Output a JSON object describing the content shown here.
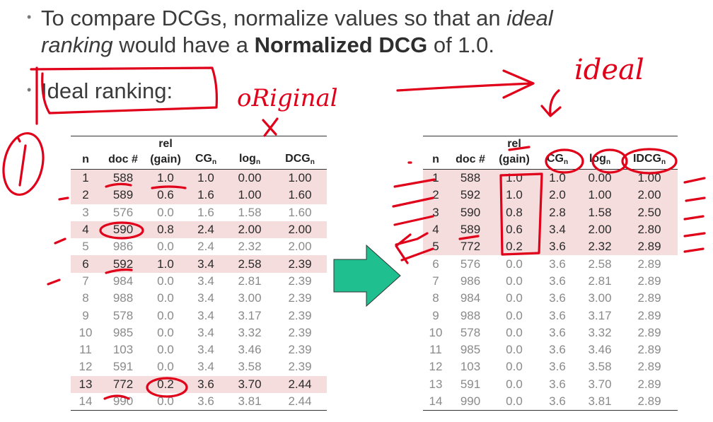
{
  "bullets": {
    "b1_pre": "To compare DCGs, normalize values so that an ",
    "b1_ital": "ideal",
    "b1_ital2": "ranking",
    "b1_mid": " would have a ",
    "b1_bold": "Normalized DCG",
    "b1_post": " of 1.0.",
    "b2": "Ideal ranking:"
  },
  "handwriting": {
    "original": "oRiginal",
    "ideal": "ideal",
    "circled": "(i)"
  },
  "colors": {
    "ink": "#e0001a",
    "arrow": "#1fbf8f",
    "highlight": "#f6dddd"
  },
  "left_table": {
    "headers": {
      "n": "n",
      "doc": "doc #",
      "rel_top": "rel",
      "rel_bot": "(gain)",
      "cg": "CG",
      "log": "log",
      "dcg": "DCG",
      "sub": "n"
    },
    "rows": [
      {
        "n": "1",
        "doc": "588",
        "rel": "1.0",
        "cg": "1.0",
        "log": "0.00",
        "dcg": "1.00",
        "hl": true
      },
      {
        "n": "2",
        "doc": "589",
        "rel": "0.6",
        "cg": "1.6",
        "log": "1.00",
        "dcg": "1.60",
        "hl": true
      },
      {
        "n": "3",
        "doc": "576",
        "rel": "0.0",
        "cg": "1.6",
        "log": "1.58",
        "dcg": "1.60",
        "hl": false
      },
      {
        "n": "4",
        "doc": "590",
        "rel": "0.8",
        "cg": "2.4",
        "log": "2.00",
        "dcg": "2.00",
        "hl": true
      },
      {
        "n": "5",
        "doc": "986",
        "rel": "0.0",
        "cg": "2.4",
        "log": "2.32",
        "dcg": "2.00",
        "hl": false
      },
      {
        "n": "6",
        "doc": "592",
        "rel": "1.0",
        "cg": "3.4",
        "log": "2.58",
        "dcg": "2.39",
        "hl": true
      },
      {
        "n": "7",
        "doc": "984",
        "rel": "0.0",
        "cg": "3.4",
        "log": "2.81",
        "dcg": "2.39",
        "hl": false
      },
      {
        "n": "8",
        "doc": "988",
        "rel": "0.0",
        "cg": "3.4",
        "log": "3.00",
        "dcg": "2.39",
        "hl": false
      },
      {
        "n": "9",
        "doc": "578",
        "rel": "0.0",
        "cg": "3.4",
        "log": "3.17",
        "dcg": "2.39",
        "hl": false
      },
      {
        "n": "10",
        "doc": "985",
        "rel": "0.0",
        "cg": "3.4",
        "log": "3.32",
        "dcg": "2.39",
        "hl": false
      },
      {
        "n": "11",
        "doc": "103",
        "rel": "0.0",
        "cg": "3.4",
        "log": "3.46",
        "dcg": "2.39",
        "hl": false
      },
      {
        "n": "12",
        "doc": "591",
        "rel": "0.0",
        "cg": "3.4",
        "log": "3.58",
        "dcg": "2.39",
        "hl": false
      },
      {
        "n": "13",
        "doc": "772",
        "rel": "0.2",
        "cg": "3.6",
        "log": "3.70",
        "dcg": "2.44",
        "hl": true
      },
      {
        "n": "14",
        "doc": "990",
        "rel": "0.0",
        "cg": "3.6",
        "log": "3.81",
        "dcg": "2.44",
        "hl": false
      }
    ]
  },
  "right_table": {
    "headers": {
      "n": "n",
      "doc": "doc #",
      "rel_top": "rel",
      "rel_bot": "(gain)",
      "cg": "CG",
      "log": "log",
      "dcg": "IDCG",
      "sub": "n"
    },
    "rows": [
      {
        "n": "1",
        "doc": "588",
        "rel": "1.0",
        "cg": "1.0",
        "log": "0.00",
        "dcg": "1.00",
        "hl": true
      },
      {
        "n": "2",
        "doc": "592",
        "rel": "1.0",
        "cg": "2.0",
        "log": "1.00",
        "dcg": "2.00",
        "hl": true
      },
      {
        "n": "3",
        "doc": "590",
        "rel": "0.8",
        "cg": "2.8",
        "log": "1.58",
        "dcg": "2.50",
        "hl": true
      },
      {
        "n": "4",
        "doc": "589",
        "rel": "0.6",
        "cg": "3.4",
        "log": "2.00",
        "dcg": "2.80",
        "hl": true
      },
      {
        "n": "5",
        "doc": "772",
        "rel": "0.2",
        "cg": "3.6",
        "log": "2.32",
        "dcg": "2.89",
        "hl": true
      },
      {
        "n": "6",
        "doc": "576",
        "rel": "0.0",
        "cg": "3.6",
        "log": "2.58",
        "dcg": "2.89",
        "hl": false
      },
      {
        "n": "7",
        "doc": "986",
        "rel": "0.0",
        "cg": "3.6",
        "log": "2.81",
        "dcg": "2.89",
        "hl": false
      },
      {
        "n": "8",
        "doc": "984",
        "rel": "0.0",
        "cg": "3.6",
        "log": "3.00",
        "dcg": "2.89",
        "hl": false
      },
      {
        "n": "9",
        "doc": "988",
        "rel": "0.0",
        "cg": "3.6",
        "log": "3.17",
        "dcg": "2.89",
        "hl": false
      },
      {
        "n": "10",
        "doc": "578",
        "rel": "0.0",
        "cg": "3.6",
        "log": "3.32",
        "dcg": "2.89",
        "hl": false
      },
      {
        "n": "11",
        "doc": "985",
        "rel": "0.0",
        "cg": "3.6",
        "log": "3.46",
        "dcg": "2.89",
        "hl": false
      },
      {
        "n": "12",
        "doc": "103",
        "rel": "0.0",
        "cg": "3.6",
        "log": "3.58",
        "dcg": "2.89",
        "hl": false
      },
      {
        "n": "13",
        "doc": "591",
        "rel": "0.0",
        "cg": "3.6",
        "log": "3.70",
        "dcg": "2.89",
        "hl": false
      },
      {
        "n": "14",
        "doc": "990",
        "rel": "0.0",
        "cg": "3.6",
        "log": "3.81",
        "dcg": "2.89",
        "hl": false
      }
    ]
  }
}
